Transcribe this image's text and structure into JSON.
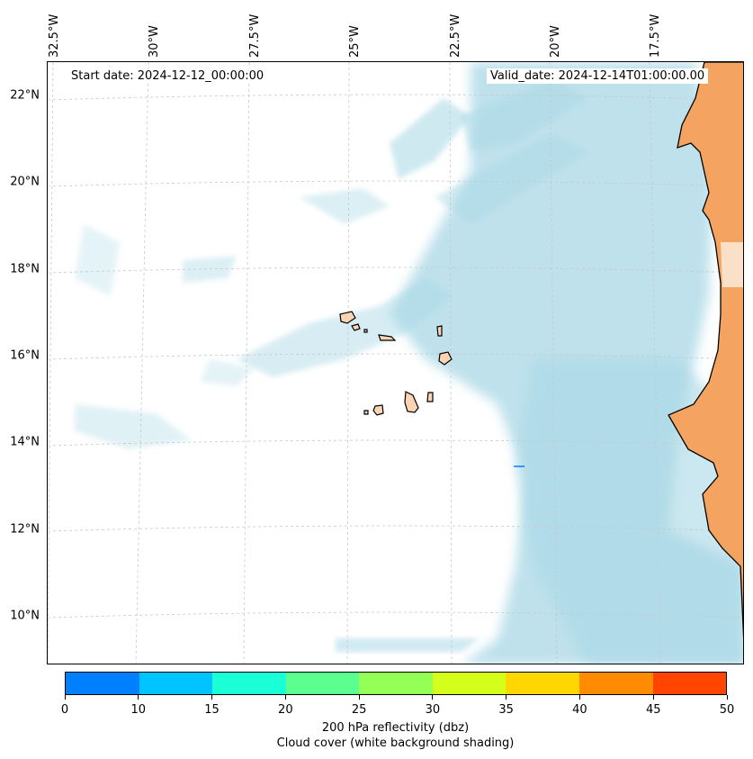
{
  "map": {
    "start_date": "Start date: 2024-12-12_00:00:00",
    "valid_date": "Valid_date: 2024-12-14T01:00:00.00",
    "lat_labels": [
      "22°N",
      "20°N",
      "18°N",
      "16°N",
      "14°N",
      "12°N",
      "10°N"
    ],
    "lon_labels": [
      "32.5°W",
      "30°W",
      "27.5°W",
      "25°W",
      "22.5°W",
      "20°W",
      "17.5°W"
    ],
    "colors": {
      "cloud": "#a9d8e6",
      "land": "#f4a460",
      "gridline": "#c8c8c8",
      "coast": "#000000"
    }
  },
  "colorbar": {
    "colors": [
      "#007fff",
      "#00c4ff",
      "#1affd5",
      "#5aff8f",
      "#94ff55",
      "#d4ff1a",
      "#ffd700",
      "#ff8c00",
      "#ff4500"
    ],
    "ticks": [
      "0",
      "10",
      "15",
      "20",
      "25",
      "30",
      "35",
      "40",
      "45",
      "50"
    ],
    "label": "200 hPa reflectivity (dbz)",
    "sublabel": "Cloud cover (white background shading)"
  }
}
